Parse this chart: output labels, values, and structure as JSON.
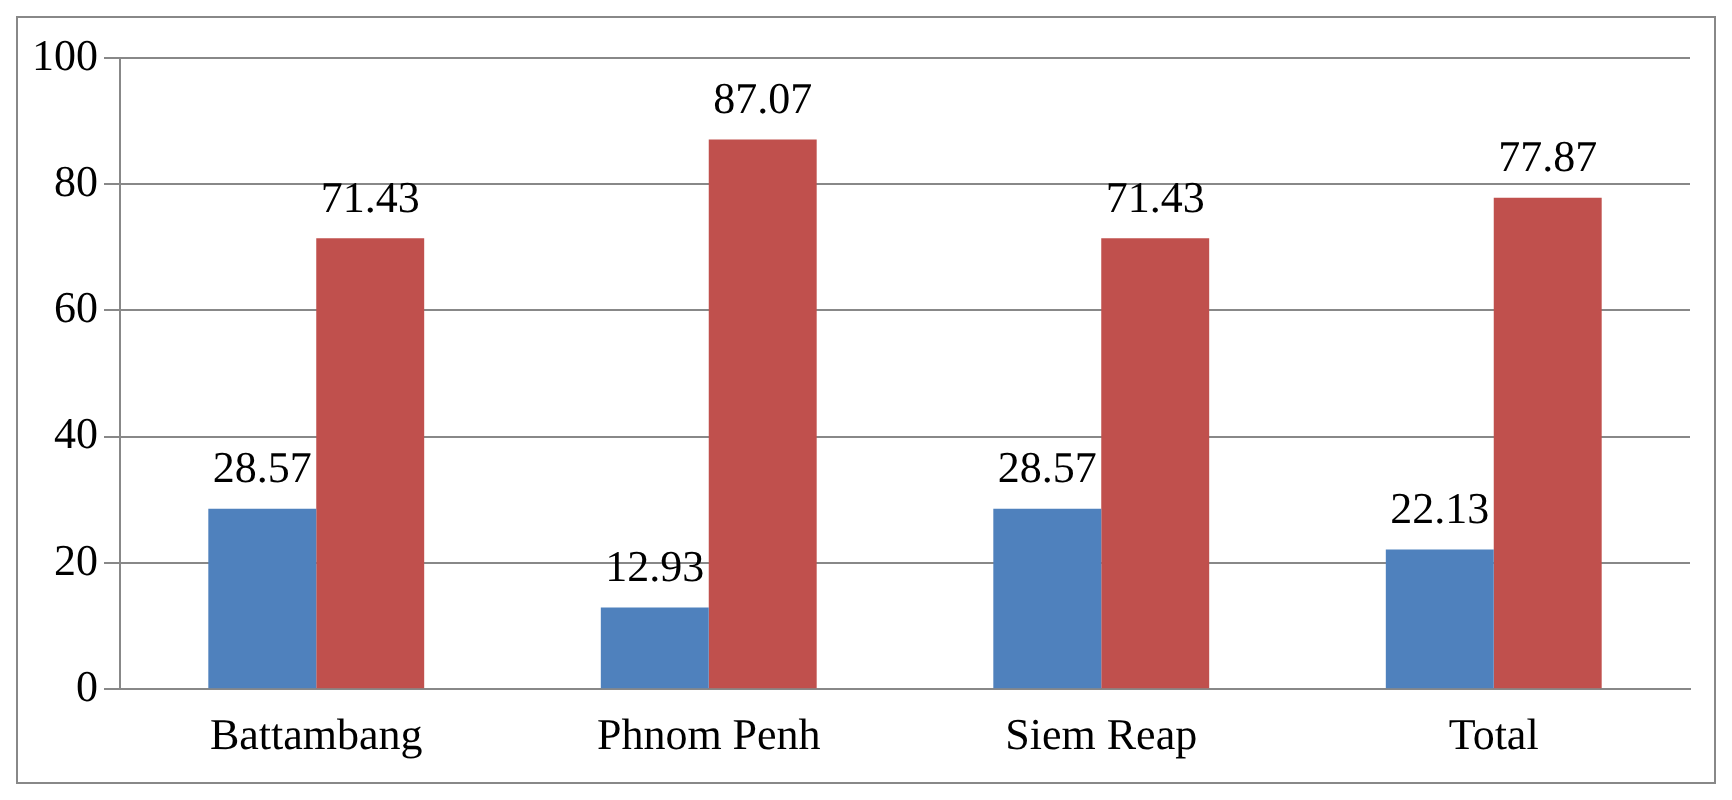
{
  "chart_data": {
    "type": "bar",
    "categories": [
      "Battambang",
      "Phnom Penh",
      "Siem Reap",
      "Total"
    ],
    "series": [
      {
        "color": "#4f81bd",
        "values": [
          28.57,
          12.93,
          28.57,
          22.13
        ]
      },
      {
        "color": "#c0504d",
        "values": [
          71.43,
          87.07,
          71.43,
          77.87
        ]
      }
    ],
    "ylim": [
      0,
      100
    ],
    "yticks": [
      0,
      20,
      40,
      60,
      80,
      100
    ],
    "grid": "y",
    "legend": false,
    "data_labels": true
  }
}
